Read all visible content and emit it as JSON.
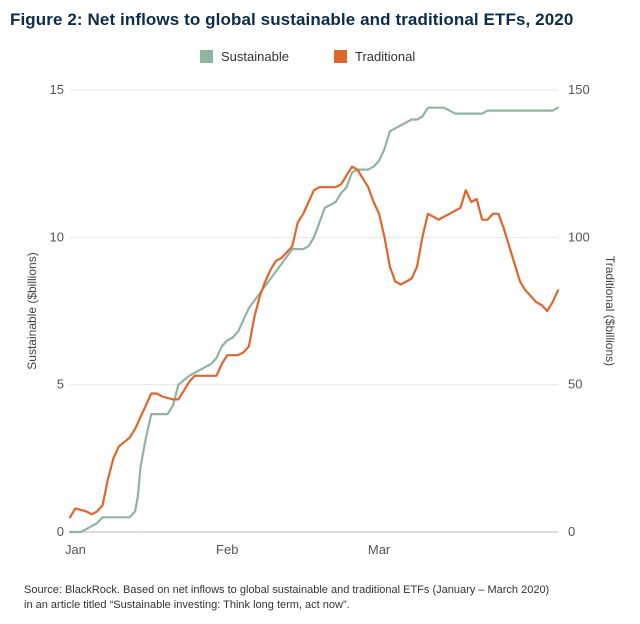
{
  "figure": {
    "title": "Figure 2: Net inflows to global sustainable and traditional ETFs, 2020",
    "source_line1": "Source: BlackRock. Based on net inflows to global sustainable and traditional ETFs (January – March 2020)",
    "source_line2": "in an article titled “Sustainable investing: Think long term, act now”."
  },
  "chart_data": {
    "type": "line",
    "title": "Figure 2: Net inflows to global sustainable and traditional ETFs, 2020",
    "xlabel": "",
    "ylabel_left": "Sustainable ($billions)",
    "ylabel_right": "Traditional ($billions)",
    "ylim_left": [
      0,
      15
    ],
    "ylim_right": [
      0,
      150
    ],
    "yticks_left": [
      "0",
      "5",
      "10",
      "15"
    ],
    "yticks_right": [
      "0",
      "50",
      "100",
      "150"
    ],
    "x_range_days": [
      0,
      90
    ],
    "x_ticks": [
      {
        "label": "Jan",
        "day": 1
      },
      {
        "label": "Feb",
        "day": 29
      },
      {
        "label": "Mar",
        "day": 57
      }
    ],
    "grid": true,
    "legend_position": "top-center",
    "series": [
      {
        "name": "Sustainable",
        "axis": "left",
        "color": "#8fb5a1",
        "points": [
          [
            0,
            0
          ],
          [
            2,
            0
          ],
          [
            3,
            0.1
          ],
          [
            4,
            0.2
          ],
          [
            5,
            0.3
          ],
          [
            6,
            0.5
          ],
          [
            8,
            0.5
          ],
          [
            10,
            0.5
          ],
          [
            11,
            0.5
          ],
          [
            12,
            0.7
          ],
          [
            12.5,
            1.2
          ],
          [
            13,
            2.2
          ],
          [
            14,
            3.2
          ],
          [
            15,
            4.0
          ],
          [
            16,
            4.0
          ],
          [
            17,
            4.0
          ],
          [
            18,
            4.0
          ],
          [
            19,
            4.3
          ],
          [
            20,
            5.0
          ],
          [
            22,
            5.3
          ],
          [
            24,
            5.5
          ],
          [
            26,
            5.7
          ],
          [
            27,
            5.9
          ],
          [
            28,
            6.3
          ],
          [
            29,
            6.5
          ],
          [
            30,
            6.6
          ],
          [
            31,
            6.8
          ],
          [
            32,
            7.2
          ],
          [
            33,
            7.6
          ],
          [
            35,
            8.1
          ],
          [
            37,
            8.6
          ],
          [
            39,
            9.1
          ],
          [
            41,
            9.6
          ],
          [
            43,
            9.6
          ],
          [
            44,
            9.7
          ],
          [
            45,
            10.0
          ],
          [
            46,
            10.5
          ],
          [
            47,
            11.0
          ],
          [
            49,
            11.2
          ],
          [
            50,
            11.5
          ],
          [
            51,
            11.7
          ],
          [
            52,
            12.2
          ],
          [
            53,
            12.3
          ],
          [
            55,
            12.3
          ],
          [
            56,
            12.4
          ],
          [
            57,
            12.6
          ],
          [
            58,
            13.0
          ],
          [
            59,
            13.6
          ],
          [
            60,
            13.7
          ],
          [
            61,
            13.8
          ],
          [
            62,
            13.9
          ],
          [
            63,
            14.0
          ],
          [
            64,
            14.0
          ],
          [
            65,
            14.1
          ],
          [
            66,
            14.4
          ],
          [
            67,
            14.4
          ],
          [
            68,
            14.4
          ],
          [
            69,
            14.4
          ],
          [
            70,
            14.3
          ],
          [
            71,
            14.2
          ],
          [
            72,
            14.2
          ],
          [
            73,
            14.2
          ],
          [
            74,
            14.2
          ],
          [
            75,
            14.2
          ],
          [
            76,
            14.2
          ],
          [
            77,
            14.3
          ],
          [
            78,
            14.3
          ],
          [
            79,
            14.3
          ],
          [
            80,
            14.3
          ],
          [
            81,
            14.3
          ],
          [
            82,
            14.3
          ],
          [
            83,
            14.3
          ],
          [
            84,
            14.3
          ],
          [
            85,
            14.3
          ],
          [
            86,
            14.3
          ],
          [
            87,
            14.3
          ],
          [
            88,
            14.3
          ],
          [
            89,
            14.3
          ],
          [
            90,
            14.4
          ]
        ]
      },
      {
        "name": "Traditional",
        "axis": "right",
        "color": "#e0662c",
        "points": [
          [
            0,
            5
          ],
          [
            1,
            8
          ],
          [
            3,
            7
          ],
          [
            4,
            6
          ],
          [
            5,
            7
          ],
          [
            6,
            9
          ],
          [
            7,
            18
          ],
          [
            8,
            25
          ],
          [
            9,
            29
          ],
          [
            11,
            32
          ],
          [
            12,
            35
          ],
          [
            13,
            39
          ],
          [
            14,
            43
          ],
          [
            15,
            47
          ],
          [
            16,
            47
          ],
          [
            17,
            46
          ],
          [
            19,
            45
          ],
          [
            20,
            45
          ],
          [
            21,
            48
          ],
          [
            22,
            51
          ],
          [
            23,
            53
          ],
          [
            25,
            53
          ],
          [
            27,
            53
          ],
          [
            28,
            57
          ],
          [
            29,
            60
          ],
          [
            30,
            60
          ],
          [
            31,
            60
          ],
          [
            32,
            61
          ],
          [
            33,
            63
          ],
          [
            34,
            73
          ],
          [
            35,
            80
          ],
          [
            36,
            85
          ],
          [
            37,
            89
          ],
          [
            38,
            92
          ],
          [
            39,
            93
          ],
          [
            40,
            95
          ],
          [
            41,
            97
          ],
          [
            42,
            105
          ],
          [
            43,
            108
          ],
          [
            44,
            112
          ],
          [
            45,
            116
          ],
          [
            46,
            117
          ],
          [
            48,
            117
          ],
          [
            49,
            117
          ],
          [
            50,
            118
          ],
          [
            51,
            121
          ],
          [
            52,
            124
          ],
          [
            53,
            123
          ],
          [
            54,
            120
          ],
          [
            55,
            117
          ],
          [
            56,
            112
          ],
          [
            57,
            108
          ],
          [
            58,
            100
          ],
          [
            59,
            90
          ],
          [
            60,
            85
          ],
          [
            61,
            84
          ],
          [
            62,
            85
          ],
          [
            63,
            86
          ],
          [
            64,
            90
          ],
          [
            65,
            100
          ],
          [
            66,
            108
          ],
          [
            67,
            107
          ],
          [
            68,
            106
          ],
          [
            69,
            107
          ],
          [
            70,
            108
          ],
          [
            71,
            109
          ],
          [
            72,
            110
          ],
          [
            73,
            116
          ],
          [
            74,
            112
          ],
          [
            75,
            113
          ],
          [
            76,
            106
          ],
          [
            77,
            106
          ],
          [
            78,
            108
          ],
          [
            79,
            108
          ],
          [
            80,
            103
          ],
          [
            81,
            97
          ],
          [
            82,
            91
          ],
          [
            83,
            85
          ],
          [
            84,
            82
          ],
          [
            85,
            80
          ],
          [
            86,
            78
          ],
          [
            87,
            77
          ],
          [
            88,
            75
          ],
          [
            89,
            78
          ],
          [
            90,
            82
          ]
        ]
      }
    ]
  }
}
